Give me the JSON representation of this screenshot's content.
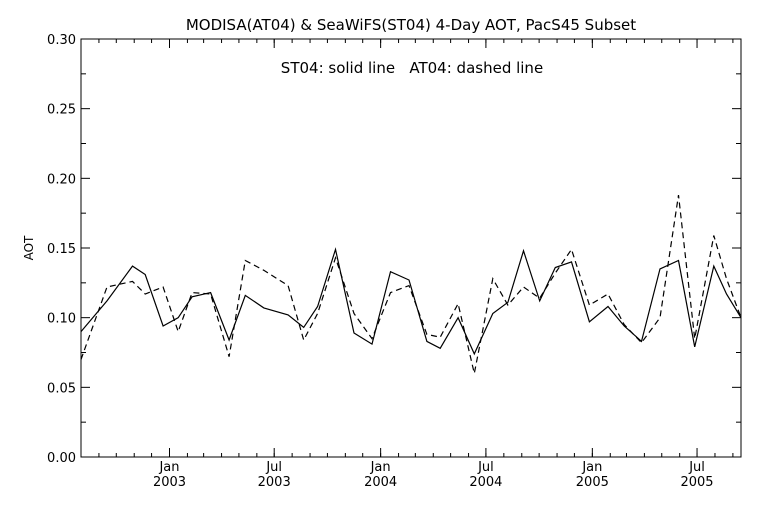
{
  "chart_data": {
    "type": "line",
    "title": "MODISA(AT04) & SeaWiFS(ST04) 4-Day AOT, PacS45 Subset",
    "annotation": "ST04: solid line   AT04: dashed line",
    "xlabel": "",
    "ylabel": "AOT",
    "xlim": [
      "2002-08-01",
      "2005-09-15"
    ],
    "ylim": [
      0.0,
      0.3
    ],
    "grid": false,
    "legend": "none",
    "y_ticks": [
      "0.00",
      "0.05",
      "0.10",
      "0.15",
      "0.20",
      "0.25",
      "0.30"
    ],
    "x_ticks": [
      {
        "date": "2003-01-01",
        "month": "Jan",
        "year": "2003"
      },
      {
        "date": "2003-07-01",
        "month": "Jul",
        "year": "2003"
      },
      {
        "date": "2004-01-01",
        "month": "Jan",
        "year": "2004"
      },
      {
        "date": "2004-07-01",
        "month": "Jul",
        "year": "2004"
      },
      {
        "date": "2005-01-01",
        "month": "Jan",
        "year": "2005"
      },
      {
        "date": "2005-07-01",
        "month": "Jul",
        "year": "2005"
      }
    ],
    "series": [
      {
        "style": "solid",
        "color": "#000000",
        "x": [
          "2002-08-01",
          "2002-09-15",
          "2002-10-29",
          "2002-11-20",
          "2002-12-21",
          "2003-01-16",
          "2003-02-09",
          "2003-03-13",
          "2003-04-14",
          "2003-05-12",
          "2003-06-13",
          "2003-07-25",
          "2003-08-21",
          "2003-09-14",
          "2003-10-15",
          "2003-11-16",
          "2003-12-17",
          "2004-01-18",
          "2004-02-19",
          "2004-03-21",
          "2004-04-13",
          "2004-05-14",
          "2004-06-11",
          "2004-07-13",
          "2004-08-08",
          "2004-09-04",
          "2004-10-02",
          "2004-10-29",
          "2004-11-26",
          "2004-12-27",
          "2005-01-28",
          "2005-02-25",
          "2005-03-27",
          "2005-04-28",
          "2005-05-30",
          "2005-06-27",
          "2005-07-30",
          "2005-08-21",
          "2005-09-15"
        ],
        "y": [
          0.09,
          0.112,
          0.137,
          0.131,
          0.094,
          0.1,
          0.115,
          0.118,
          0.084,
          0.116,
          0.107,
          0.102,
          0.093,
          0.108,
          0.149,
          0.089,
          0.081,
          0.133,
          0.127,
          0.083,
          0.078,
          0.1,
          0.074,
          0.103,
          0.111,
          0.148,
          0.112,
          0.136,
          0.14,
          0.097,
          0.108,
          0.094,
          0.083,
          0.135,
          0.141,
          0.079,
          0.137,
          0.117,
          0.1
        ]
      },
      {
        "style": "dashed",
        "color": "#000000",
        "x": [
          "2002-08-01",
          "2002-09-15",
          "2002-10-29",
          "2002-11-20",
          "2002-12-21",
          "2003-01-16",
          "2003-02-09",
          "2003-03-13",
          "2003-04-14",
          "2003-05-12",
          "2003-06-13",
          "2003-07-25",
          "2003-08-21",
          "2003-09-14",
          "2003-10-15",
          "2003-11-16",
          "2003-12-17",
          "2004-01-18",
          "2004-02-19",
          "2004-03-21",
          "2004-04-13",
          "2004-05-14",
          "2004-06-11",
          "2004-07-13",
          "2004-08-08",
          "2004-09-04",
          "2004-10-02",
          "2004-10-29",
          "2004-11-26",
          "2004-12-27",
          "2005-01-28",
          "2005-02-25",
          "2005-03-27",
          "2005-04-28",
          "2005-05-30",
          "2005-06-27",
          "2005-07-30",
          "2005-08-21",
          "2005-09-15"
        ],
        "y": [
          0.07,
          0.122,
          0.126,
          0.117,
          0.122,
          0.09,
          0.118,
          0.117,
          0.072,
          0.141,
          0.134,
          0.123,
          0.084,
          0.103,
          0.143,
          0.103,
          0.085,
          0.118,
          0.123,
          0.088,
          0.086,
          0.11,
          0.06,
          0.128,
          0.109,
          0.122,
          0.114,
          0.132,
          0.149,
          0.109,
          0.117,
          0.095,
          0.082,
          0.1,
          0.188,
          0.085,
          0.159,
          0.128,
          0.1
        ]
      }
    ]
  }
}
